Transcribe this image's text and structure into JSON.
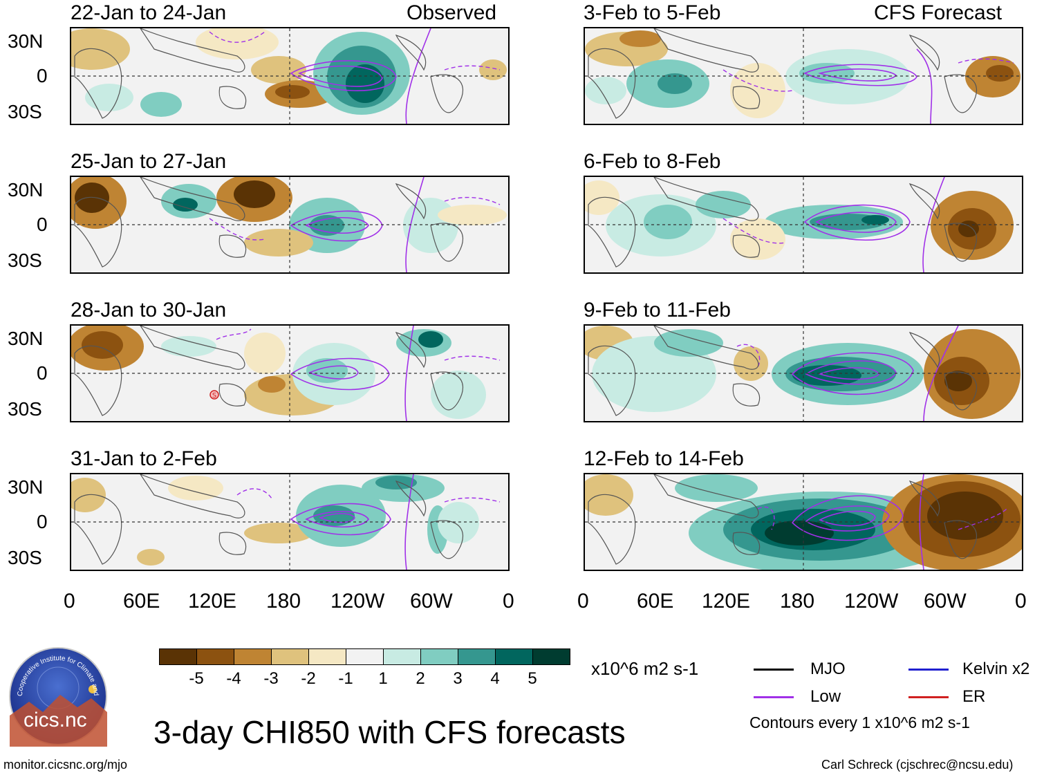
{
  "panels": [
    {
      "title": "22-Jan to 24-Jan",
      "tag": "Observed"
    },
    {
      "title": "3-Feb to 5-Feb",
      "tag": "CFS Forecast"
    },
    {
      "title": "25-Jan to 27-Jan",
      "tag": ""
    },
    {
      "title": "6-Feb to 8-Feb",
      "tag": ""
    },
    {
      "title": "28-Jan to 30-Jan",
      "tag": ""
    },
    {
      "title": "9-Feb to 11-Feb",
      "tag": ""
    },
    {
      "title": "31-Jan to 2-Feb",
      "tag": ""
    },
    {
      "title": "12-Feb to 14-Feb",
      "tag": ""
    }
  ],
  "lat_labels": [
    "30N",
    "0",
    "30S"
  ],
  "lon_labels": [
    "0",
    "60E",
    "120E",
    "180",
    "120W",
    "60W",
    "0"
  ],
  "colorbar": {
    "colors": [
      "#5a3305",
      "#8c5210",
      "#bf8433",
      "#dfc27d",
      "#f5e8c4",
      "#f2f2f2",
      "#c8ebe3",
      "#80cdc1",
      "#35978f",
      "#01665e",
      "#003c30"
    ],
    "labels": [
      "-5",
      "-4",
      "-3",
      "-2",
      "-1",
      "1",
      "2",
      "3",
      "4",
      "5"
    ],
    "units": "x10^6 m2 s-1"
  },
  "legend": {
    "items": [
      {
        "label": "MJO",
        "color": "#000000"
      },
      {
        "label": "Kelvin x2",
        "color": "#2020d0"
      },
      {
        "label": "Low",
        "color": "#a030e8"
      },
      {
        "label": "ER",
        "color": "#d02020"
      }
    ],
    "note": "Contours every 1 x10^6 m2 s-1"
  },
  "main_title": "3-day CHI850 with CFS forecasts",
  "logo_text": "cics.nc",
  "logo_ring": "Cooperative Institute for Climate and Satellites",
  "footer_left": "monitor.cicsnc.org/mjo",
  "footer_right": "Carl Schreck (cjschrec@ncsu.edu)",
  "tc_symbol": "S"
}
